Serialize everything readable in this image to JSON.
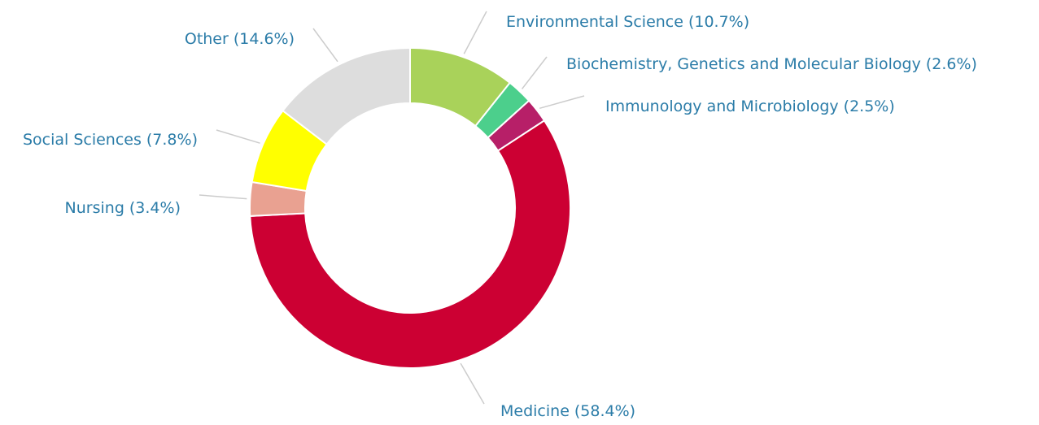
{
  "chart_data": {
    "type": "pie",
    "categories": [
      "Environmental Science",
      "Biochemistry, Genetics and Molecular Biology",
      "Immunology and Microbiology",
      "Medicine",
      "Nursing",
      "Social Sciences",
      "Other"
    ],
    "values": [
      10.7,
      2.6,
      2.5,
      58.4,
      3.4,
      7.8,
      14.6
    ],
    "value_labels": [
      "(10.7%)",
      "(2.6%)",
      "(2.5%)",
      "(58.4%)",
      "(3.4%)",
      "(7.8%)",
      "(14.6%)"
    ],
    "colors": [
      "#a9d25a",
      "#4ccf8c",
      "#b71f68",
      "#cc0033",
      "#e9a191",
      "#ffff00",
      "#dddddd"
    ],
    "donut": true
  }
}
